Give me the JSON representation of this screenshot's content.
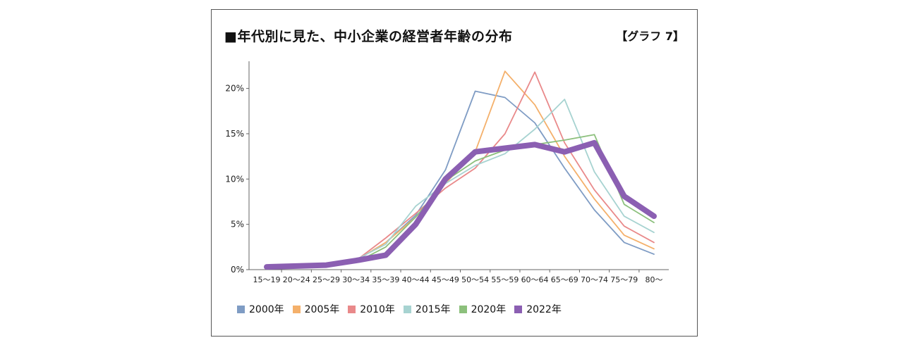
{
  "chart_data": {
    "type": "line",
    "title": "■年代別に見た、中小企業の経営者年齢の分布",
    "tag": "【グラフ 7】",
    "categories": [
      "15～19",
      "20～24",
      "25～29",
      "30～34",
      "35～39",
      "40～44",
      "45～49",
      "50～54",
      "55～59",
      "60～64",
      "65～69",
      "70～74",
      "75～79",
      "80～"
    ],
    "yticks": [
      "0%",
      "5%",
      "10%",
      "15%",
      "20%"
    ],
    "ylim": [
      0,
      23
    ],
    "legend_position": "bottom",
    "series": [
      {
        "name": "2000年",
        "color": "#7f9cc4",
        "values": [
          0.2,
          0.2,
          0.3,
          1.0,
          3.0,
          6.0,
          11.0,
          19.7,
          19.0,
          16.2,
          11.2,
          6.6,
          3.0,
          1.7
        ]
      },
      {
        "name": "2005年",
        "color": "#f4b06b",
        "values": [
          0.2,
          0.2,
          0.3,
          1.0,
          3.0,
          5.8,
          9.5,
          13.0,
          21.9,
          18.2,
          12.5,
          7.8,
          3.8,
          2.3
        ]
      },
      {
        "name": "2010年",
        "color": "#e9898a",
        "values": [
          0.2,
          0.2,
          0.4,
          1.0,
          3.5,
          6.2,
          9.0,
          11.2,
          15.0,
          21.8,
          14.0,
          8.8,
          4.8,
          3.0
        ]
      },
      {
        "name": "2015年",
        "color": "#a7d3d1",
        "values": [
          0.2,
          0.2,
          0.5,
          1.1,
          2.8,
          7.0,
          9.5,
          11.5,
          12.8,
          15.5,
          18.8,
          10.8,
          5.9,
          4.1
        ]
      },
      {
        "name": "2020年",
        "color": "#8cc07c",
        "values": [
          0.2,
          0.3,
          0.5,
          0.8,
          2.5,
          5.8,
          9.8,
          12.0,
          13.2,
          13.8,
          14.3,
          14.9,
          7.2,
          5.2
        ]
      },
      {
        "name": "2022年",
        "color": "#8b5fb2",
        "values": [
          0.3,
          0.4,
          0.5,
          1.0,
          1.6,
          5.0,
          10.0,
          13.0,
          13.4,
          13.8,
          13.0,
          14.0,
          8.1,
          5.9
        ]
      }
    ]
  }
}
